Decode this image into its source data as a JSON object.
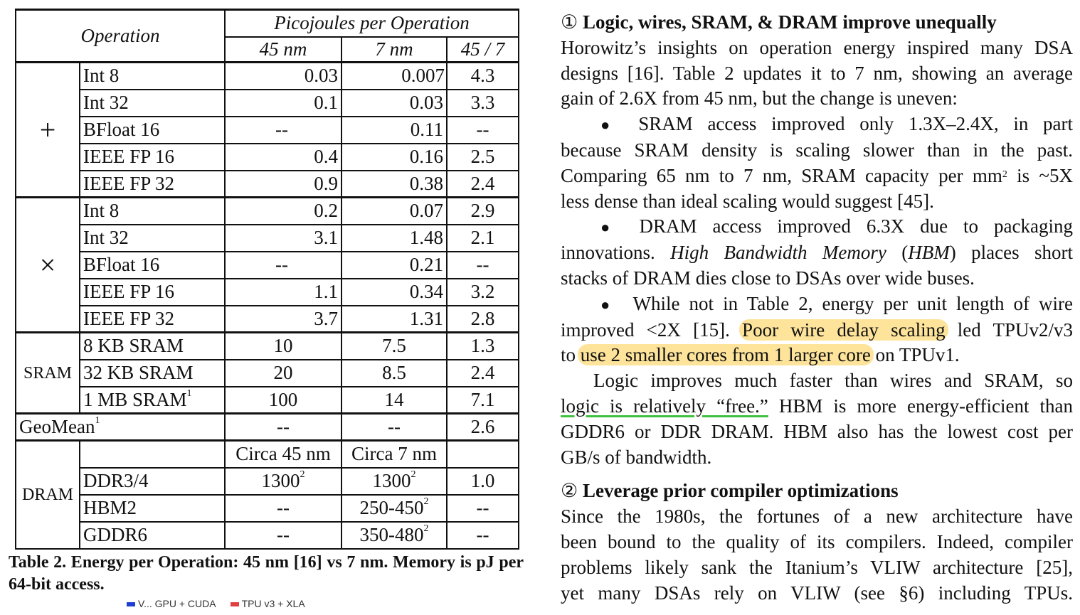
{
  "table": {
    "header": {
      "operation": "Operation",
      "picojoules": "Picojoules per Operation",
      "col_45": "45 nm",
      "col_7": "7 nm",
      "col_ratio": "45 / 7"
    },
    "groups": {
      "add_symbol": "+",
      "mul_symbol": "×",
      "sram": "SRAM",
      "dram": "DRAM"
    },
    "add_rows": [
      {
        "op": "Int 8",
        "v45": "0.03",
        "v7": "0.007",
        "ratio": "4.3"
      },
      {
        "op": "Int 32",
        "v45": "0.1",
        "v7": "0.03",
        "ratio": "3.3"
      },
      {
        "op": "BFloat 16",
        "v45": "--",
        "v7": "0.11",
        "ratio": "--"
      },
      {
        "op": "IEEE FP 16",
        "v45": "0.4",
        "v7": "0.16",
        "ratio": "2.5"
      },
      {
        "op": "IEEE FP 32",
        "v45": "0.9",
        "v7": "0.38",
        "ratio": "2.4"
      }
    ],
    "mul_rows": [
      {
        "op": "Int 8",
        "v45": "0.2",
        "v7": "0.07",
        "ratio": "2.9"
      },
      {
        "op": "Int 32",
        "v45": "3.1",
        "v7": "1.48",
        "ratio": "2.1"
      },
      {
        "op": "BFloat 16",
        "v45": "--",
        "v7": "0.21",
        "ratio": "--"
      },
      {
        "op": "IEEE FP 16",
        "v45": "1.1",
        "v7": "0.34",
        "ratio": "3.2"
      },
      {
        "op": "IEEE FP 32",
        "v45": "3.7",
        "v7": "1.31",
        "ratio": "2.8"
      }
    ],
    "sram_rows": [
      {
        "op": "8 KB SRAM",
        "v45": "10",
        "v7": "7.5",
        "ratio": "1.3"
      },
      {
        "op": "32 KB SRAM",
        "v45": "20",
        "v7": "8.5",
        "ratio": "2.4"
      },
      {
        "op": "1 MB SRAM",
        "op_sup": "1",
        "v45": "100",
        "v7": "14",
        "ratio": "7.1"
      }
    ],
    "geomean": {
      "op": "GeoMean",
      "op_sup": "1",
      "v45": "--",
      "v7": "--",
      "ratio": "2.6"
    },
    "dram_header": {
      "c45": "Circa 45 nm",
      "c7": "Circa 7 nm"
    },
    "dram_rows": [
      {
        "op": "DDR3/4",
        "v45": "1300",
        "v45_sup": "2",
        "v7": "1300",
        "v7_sup": "2",
        "ratio": "1.0"
      },
      {
        "op": "HBM2",
        "v45": "--",
        "v7": "250-450",
        "v7_sup": "2",
        "ratio": "--"
      },
      {
        "op": "GDDR6",
        "v45": "--",
        "v7": "350-480",
        "v7_sup": "2",
        "ratio": "--"
      }
    ]
  },
  "caption": "Table 2. Energy per Operation: 45 nm [16] vs 7 nm. Memory is pJ per 64-bit access.",
  "legend": {
    "color_blue": "#1f3fd0",
    "color_red": "#e04040",
    "label_1": "V... GPU + CUDA",
    "label_2": "TPU v3 + XLA"
  },
  "section1": {
    "marker": "①",
    "title": "Logic, wires, SRAM, & DRAM improve unequally",
    "intro_lines": [
      "Horowitz’s insights on operation energy inspired many DSA",
      "designs [16]. Table 2 updates it to 7 nm, showing an average"
    ],
    "intro_last": "gain of 2.6X from 45 nm, but the change is uneven:",
    "bullet_symbol": "●",
    "b1_line1": "SRAM access improved only 1.3X–2.4X, in part",
    "b1_line2": "because SRAM density is scaling slower than in the past.",
    "b1_line3a": "Comparing 65 nm to 7 nm, SRAM capacity per mm",
    "b1_line3_sup": "2",
    "b1_line3b": " is ~5X",
    "b1_line4": "less dense than ideal scaling would suggest [45].",
    "b2_line1": "DRAM access improved 6.3X due to packaging",
    "b2_line2a": "innovations. ",
    "b2_line2_it": "High Bandwidth Memory",
    "b2_line2b": " (",
    "b2_line2_it2": "HBM",
    "b2_line2c": ") places short",
    "b2_line3": "stacks of DRAM dies close to DSAs over wide buses.",
    "b3_line1": "While not in Table 2, energy per unit length of wire",
    "b3_line2a": "improved <2X [15]. ",
    "b3_line2_hl": "Poor wire delay scaling",
    "b3_line2b": " led TPUv2/v3",
    "b3_line3a": "to ",
    "b3_line3_hl": "use 2 smaller cores from 1 larger core",
    "b3_line3b": " on TPUv1.",
    "p_line1": "Logic improves much faster than wires and SRAM, so",
    "p_line2_ul": "logic is relatively “free.”",
    "p_line2b": " HBM is more energy-efficient than",
    "p_line3": "GDDR6 or DDR DRAM. HBM also has the lowest cost per",
    "p_line4": "GB/s of bandwidth."
  },
  "section2": {
    "marker": "②",
    "title": "Leverage prior compiler optimizations",
    "lines": [
      "Since the 1980s, the fortunes of a new architecture have",
      "been bound to the quality of its compilers. Indeed, compiler",
      "problems likely sank the Itanium’s VLIW architecture [25],",
      "yet many DSAs rely on VLIW (see §6) including TPUs."
    ]
  }
}
